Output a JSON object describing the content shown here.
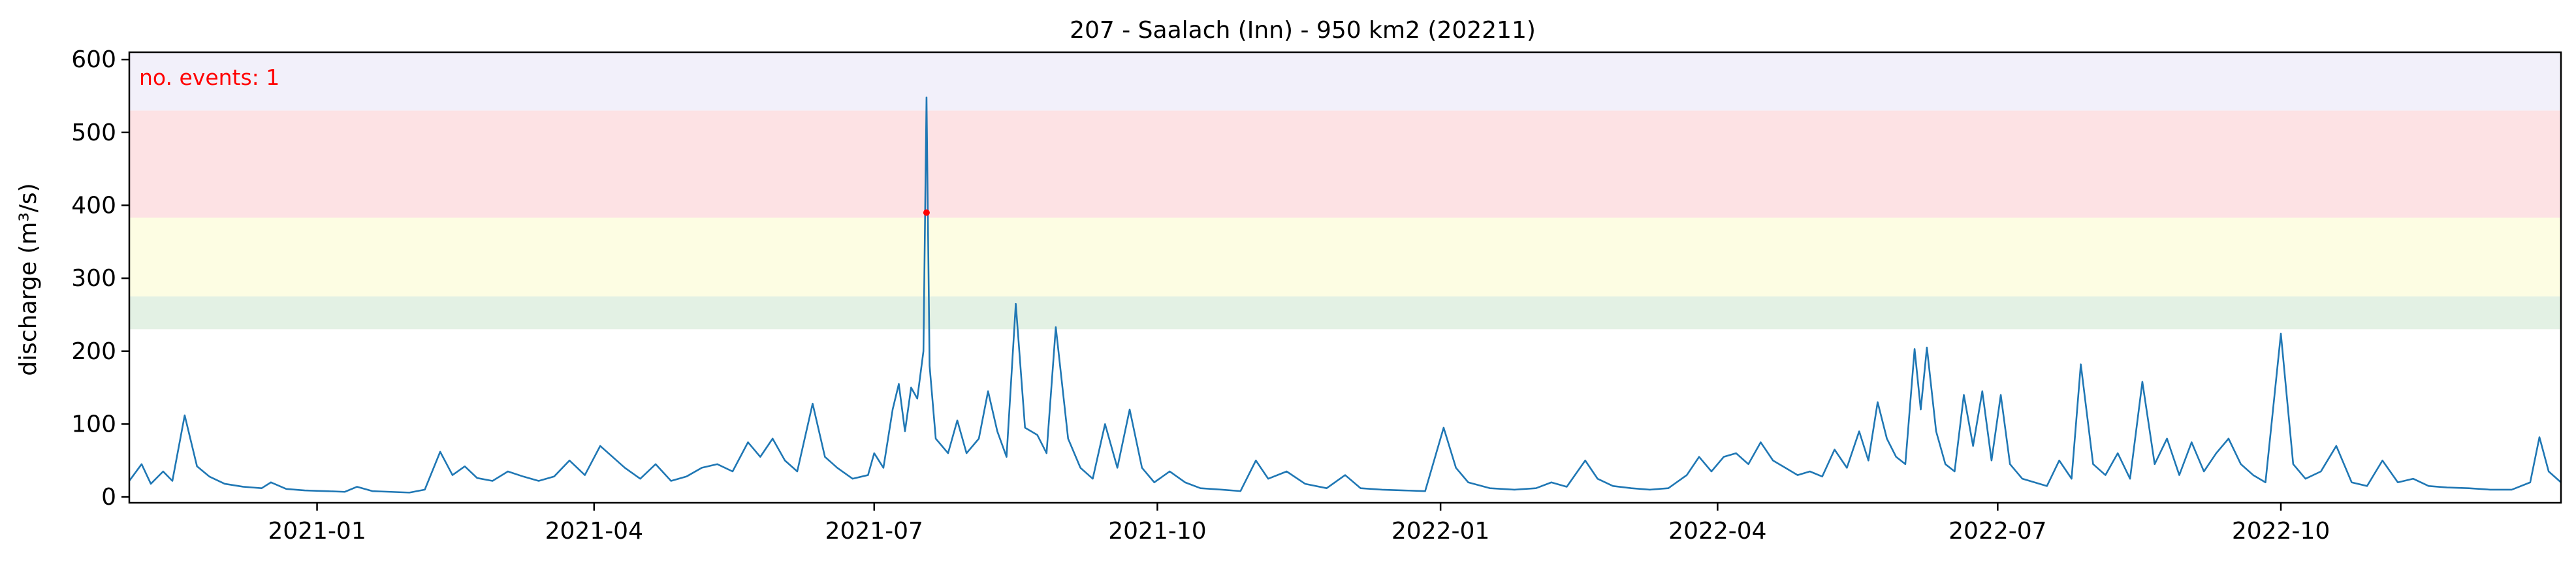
{
  "chart_data": {
    "type": "line",
    "title": "207 - Saalach (Inn) - 950 km2 (202211)",
    "xlabel": "",
    "ylabel": "discharge (m³/s)",
    "xlim": [
      "2020-11-01",
      "2022-12-31"
    ],
    "ylim": [
      -8,
      610
    ],
    "x_ticks": [
      "2021-01",
      "2021-04",
      "2021-07",
      "2021-10",
      "2022-01",
      "2022-04",
      "2022-07",
      "2022-10"
    ],
    "y_ticks": [
      0,
      100,
      200,
      300,
      400,
      500,
      600
    ],
    "grid": false,
    "threshold_bands": [
      {
        "from": 230,
        "to": 275,
        "color": "#e3f1e4"
      },
      {
        "from": 275,
        "to": 383,
        "color": "#fdfde3"
      },
      {
        "from": 383,
        "to": 530,
        "color": "#fde2e4"
      },
      {
        "from": 530,
        "to": 610,
        "color": "#f2f0fa"
      }
    ],
    "annotation": {
      "text": "no. events: 1",
      "color": "#ff0000"
    },
    "events": [
      {
        "date": "2021-07-18",
        "value": 390
      }
    ],
    "series": [
      {
        "color": "#1f77b4",
        "points": [
          [
            "2020-11-01",
            22
          ],
          [
            "2020-11-05",
            45
          ],
          [
            "2020-11-08",
            18
          ],
          [
            "2020-11-12",
            35
          ],
          [
            "2020-11-15",
            22
          ],
          [
            "2020-11-19",
            112
          ],
          [
            "2020-11-23",
            42
          ],
          [
            "2020-11-27",
            28
          ],
          [
            "2020-12-02",
            18
          ],
          [
            "2020-12-08",
            14
          ],
          [
            "2020-12-14",
            12
          ],
          [
            "2020-12-17",
            20
          ],
          [
            "2020-12-22",
            11
          ],
          [
            "2020-12-28",
            9
          ],
          [
            "2021-01-04",
            8
          ],
          [
            "2021-01-10",
            7
          ],
          [
            "2021-01-14",
            14
          ],
          [
            "2021-01-19",
            8
          ],
          [
            "2021-01-25",
            7
          ],
          [
            "2021-01-31",
            6
          ],
          [
            "2021-02-05",
            10
          ],
          [
            "2021-02-10",
            62
          ],
          [
            "2021-02-14",
            30
          ],
          [
            "2021-02-18",
            42
          ],
          [
            "2021-02-22",
            26
          ],
          [
            "2021-02-27",
            22
          ],
          [
            "2021-03-04",
            35
          ],
          [
            "2021-03-09",
            28
          ],
          [
            "2021-03-14",
            22
          ],
          [
            "2021-03-19",
            28
          ],
          [
            "2021-03-24",
            50
          ],
          [
            "2021-03-29",
            30
          ],
          [
            "2021-04-03",
            70
          ],
          [
            "2021-04-07",
            55
          ],
          [
            "2021-04-11",
            40
          ],
          [
            "2021-04-16",
            25
          ],
          [
            "2021-04-21",
            45
          ],
          [
            "2021-04-26",
            22
          ],
          [
            "2021-05-01",
            28
          ],
          [
            "2021-05-06",
            40
          ],
          [
            "2021-05-11",
            45
          ],
          [
            "2021-05-16",
            35
          ],
          [
            "2021-05-21",
            75
          ],
          [
            "2021-05-25",
            55
          ],
          [
            "2021-05-29",
            80
          ],
          [
            "2021-06-02",
            50
          ],
          [
            "2021-06-06",
            35
          ],
          [
            "2021-06-11",
            128
          ],
          [
            "2021-06-15",
            55
          ],
          [
            "2021-06-19",
            40
          ],
          [
            "2021-06-24",
            25
          ],
          [
            "2021-06-29",
            30
          ],
          [
            "2021-07-01",
            60
          ],
          [
            "2021-07-04",
            40
          ],
          [
            "2021-07-07",
            120
          ],
          [
            "2021-07-09",
            155
          ],
          [
            "2021-07-11",
            90
          ],
          [
            "2021-07-13",
            150
          ],
          [
            "2021-07-15",
            135
          ],
          [
            "2021-07-17",
            200
          ],
          [
            "2021-07-18",
            548
          ],
          [
            "2021-07-19",
            180
          ],
          [
            "2021-07-21",
            80
          ],
          [
            "2021-07-25",
            60
          ],
          [
            "2021-07-28",
            105
          ],
          [
            "2021-07-31",
            60
          ],
          [
            "2021-08-04",
            80
          ],
          [
            "2021-08-07",
            145
          ],
          [
            "2021-08-10",
            90
          ],
          [
            "2021-08-13",
            55
          ],
          [
            "2021-08-16",
            265
          ],
          [
            "2021-08-19",
            95
          ],
          [
            "2021-08-23",
            85
          ],
          [
            "2021-08-26",
            60
          ],
          [
            "2021-08-29",
            233
          ],
          [
            "2021-09-02",
            80
          ],
          [
            "2021-09-06",
            40
          ],
          [
            "2021-09-10",
            25
          ],
          [
            "2021-09-14",
            100
          ],
          [
            "2021-09-18",
            40
          ],
          [
            "2021-09-22",
            120
          ],
          [
            "2021-09-26",
            40
          ],
          [
            "2021-09-30",
            20
          ],
          [
            "2021-10-05",
            35
          ],
          [
            "2021-10-10",
            20
          ],
          [
            "2021-10-15",
            12
          ],
          [
            "2021-10-22",
            10
          ],
          [
            "2021-10-28",
            8
          ],
          [
            "2021-11-02",
            50
          ],
          [
            "2021-11-06",
            25
          ],
          [
            "2021-11-12",
            35
          ],
          [
            "2021-11-18",
            18
          ],
          [
            "2021-11-25",
            12
          ],
          [
            "2021-12-01",
            30
          ],
          [
            "2021-12-06",
            12
          ],
          [
            "2021-12-13",
            10
          ],
          [
            "2021-12-20",
            9
          ],
          [
            "2021-12-27",
            8
          ],
          [
            "2022-01-02",
            95
          ],
          [
            "2022-01-06",
            40
          ],
          [
            "2022-01-10",
            20
          ],
          [
            "2022-01-17",
            12
          ],
          [
            "2022-01-25",
            10
          ],
          [
            "2022-02-01",
            12
          ],
          [
            "2022-02-06",
            20
          ],
          [
            "2022-02-11",
            14
          ],
          [
            "2022-02-17",
            50
          ],
          [
            "2022-02-21",
            25
          ],
          [
            "2022-02-26",
            15
          ],
          [
            "2022-03-04",
            12
          ],
          [
            "2022-03-10",
            10
          ],
          [
            "2022-03-16",
            12
          ],
          [
            "2022-03-22",
            30
          ],
          [
            "2022-03-26",
            55
          ],
          [
            "2022-03-30",
            35
          ],
          [
            "2022-04-03",
            55
          ],
          [
            "2022-04-07",
            60
          ],
          [
            "2022-04-11",
            45
          ],
          [
            "2022-04-15",
            75
          ],
          [
            "2022-04-19",
            50
          ],
          [
            "2022-04-23",
            40
          ],
          [
            "2022-04-27",
            30
          ],
          [
            "2022-05-01",
            35
          ],
          [
            "2022-05-05",
            28
          ],
          [
            "2022-05-09",
            65
          ],
          [
            "2022-05-13",
            40
          ],
          [
            "2022-05-17",
            90
          ],
          [
            "2022-05-20",
            50
          ],
          [
            "2022-05-23",
            130
          ],
          [
            "2022-05-26",
            80
          ],
          [
            "2022-05-29",
            55
          ],
          [
            "2022-06-01",
            45
          ],
          [
            "2022-06-04",
            203
          ],
          [
            "2022-06-06",
            120
          ],
          [
            "2022-06-08",
            205
          ],
          [
            "2022-06-11",
            90
          ],
          [
            "2022-06-14",
            45
          ],
          [
            "2022-06-17",
            35
          ],
          [
            "2022-06-20",
            140
          ],
          [
            "2022-06-23",
            70
          ],
          [
            "2022-06-26",
            145
          ],
          [
            "2022-06-29",
            50
          ],
          [
            "2022-07-02",
            140
          ],
          [
            "2022-07-05",
            45
          ],
          [
            "2022-07-09",
            25
          ],
          [
            "2022-07-13",
            20
          ],
          [
            "2022-07-17",
            15
          ],
          [
            "2022-07-21",
            50
          ],
          [
            "2022-07-25",
            25
          ],
          [
            "2022-07-28",
            182
          ],
          [
            "2022-08-01",
            45
          ],
          [
            "2022-08-05",
            30
          ],
          [
            "2022-08-09",
            60
          ],
          [
            "2022-08-13",
            25
          ],
          [
            "2022-08-17",
            158
          ],
          [
            "2022-08-21",
            45
          ],
          [
            "2022-08-25",
            80
          ],
          [
            "2022-08-29",
            30
          ],
          [
            "2022-09-02",
            75
          ],
          [
            "2022-09-06",
            35
          ],
          [
            "2022-09-10",
            60
          ],
          [
            "2022-09-14",
            80
          ],
          [
            "2022-09-18",
            45
          ],
          [
            "2022-09-22",
            30
          ],
          [
            "2022-09-26",
            20
          ],
          [
            "2022-10-01",
            224
          ],
          [
            "2022-10-05",
            45
          ],
          [
            "2022-10-09",
            25
          ],
          [
            "2022-10-14",
            35
          ],
          [
            "2022-10-19",
            70
          ],
          [
            "2022-10-24",
            20
          ],
          [
            "2022-10-29",
            15
          ],
          [
            "2022-11-03",
            50
          ],
          [
            "2022-11-08",
            20
          ],
          [
            "2022-11-13",
            25
          ],
          [
            "2022-11-18",
            15
          ],
          [
            "2022-11-24",
            13
          ],
          [
            "2022-12-01",
            12
          ],
          [
            "2022-12-08",
            10
          ],
          [
            "2022-12-15",
            10
          ],
          [
            "2022-12-21",
            20
          ],
          [
            "2022-12-24",
            82
          ],
          [
            "2022-12-27",
            35
          ],
          [
            "2022-12-31",
            20
          ]
        ]
      }
    ]
  }
}
